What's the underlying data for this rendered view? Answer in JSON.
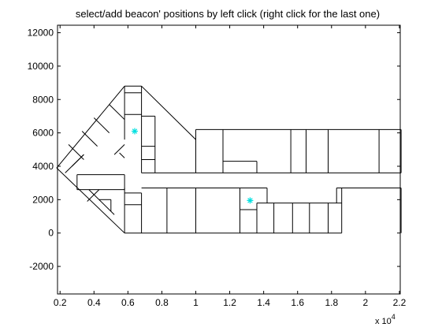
{
  "chart_data": {
    "type": "line",
    "title": "select/add beacon' positions by left click (right click for the last one)",
    "xlabel": "",
    "ylabel": "",
    "xlim": [
      1850,
      22050
    ],
    "ylim": [
      -3650,
      12450
    ],
    "x_ticks": [
      2000,
      4000,
      6000,
      8000,
      10000,
      12000,
      14000,
      16000,
      18000,
      20000,
      22000
    ],
    "x_tick_labels": [
      "0.2",
      "0.4",
      "0.6",
      "0.8",
      "1",
      "1.2",
      "1.4",
      "1.6",
      "1.8",
      "2",
      "2.2"
    ],
    "x_exponent_base": "x 10",
    "x_exponent_power": "4",
    "y_ticks": [
      -2000,
      0,
      2000,
      4000,
      6000,
      8000,
      10000,
      12000
    ],
    "y_tick_labels": [
      "-2000",
      "0",
      "2000",
      "4000",
      "6000",
      "8000",
      "10000",
      "12000"
    ],
    "grid": false,
    "line_color": "#000000",
    "marker_color": "#00e0e0",
    "segments": [
      [
        [
          10000,
          3600
        ],
        [
          22100,
          3600
        ]
      ],
      [
        [
          10000,
          6200
        ],
        [
          22100,
          6200
        ]
      ],
      [
        [
          10000,
          3600
        ],
        [
          10000,
          6200
        ]
      ],
      [
        [
          22100,
          3600
        ],
        [
          22100,
          6200
        ]
      ],
      [
        [
          11600,
          3600
        ],
        [
          11600,
          6200
        ]
      ],
      [
        [
          15600,
          3600
        ],
        [
          15600,
          6200
        ]
      ],
      [
        [
          16500,
          3600
        ],
        [
          16500,
          6200
        ]
      ],
      [
        [
          17800,
          3600
        ],
        [
          17800,
          6200
        ]
      ],
      [
        [
          20800,
          3600
        ],
        [
          20800,
          6200
        ]
      ],
      [
        [
          11600,
          4300
        ],
        [
          13600,
          4300
        ]
      ],
      [
        [
          13600,
          3600
        ],
        [
          13600,
          4300
        ]
      ],
      [
        [
          6800,
          0
        ],
        [
          18600,
          0
        ]
      ],
      [
        [
          6800,
          2700
        ],
        [
          14200,
          2700
        ]
      ],
      [
        [
          18300,
          2700
        ],
        [
          22100,
          2700
        ]
      ],
      [
        [
          22100,
          0
        ],
        [
          22100,
          2700
        ]
      ],
      [
        [
          10000,
          0
        ],
        [
          10000,
          2700
        ]
      ],
      [
        [
          12600,
          0
        ],
        [
          12600,
          2700
        ]
      ],
      [
        [
          14200,
          1800
        ],
        [
          14200,
          2700
        ]
      ],
      [
        [
          12600,
          1400
        ],
        [
          13600,
          1400
        ]
      ],
      [
        [
          13600,
          0
        ],
        [
          13600,
          1800
        ]
      ],
      [
        [
          13600,
          1800
        ],
        [
          18600,
          1800
        ]
      ],
      [
        [
          14600,
          0
        ],
        [
          14600,
          1800
        ]
      ],
      [
        [
          15700,
          0
        ],
        [
          15700,
          1800
        ]
      ],
      [
        [
          16700,
          0
        ],
        [
          16700,
          1800
        ]
      ],
      [
        [
          17800,
          0
        ],
        [
          17800,
          1800
        ]
      ],
      [
        [
          18300,
          1800
        ],
        [
          18300,
          2700
        ]
      ],
      [
        [
          18600,
          0
        ],
        [
          18600,
          2700
        ]
      ],
      [
        [
          8300,
          0
        ],
        [
          8300,
          2700
        ]
      ],
      [
        [
          5800,
          0
        ],
        [
          6800,
          0
        ]
      ],
      [
        [
          5800,
          1700
        ],
        [
          6800,
          1700
        ]
      ],
      [
        [
          5800,
          2400
        ],
        [
          6800,
          2400
        ]
      ],
      [
        [
          6800,
          0
        ],
        [
          6800,
          2400
        ]
      ],
      [
        [
          5800,
          0
        ],
        [
          5800,
          2700
        ]
      ],
      [
        [
          3000,
          2600
        ],
        [
          5800,
          2600
        ]
      ],
      [
        [
          3000,
          3500
        ],
        [
          5800,
          3500
        ]
      ],
      [
        [
          3000,
          2600
        ],
        [
          3000,
          3500
        ]
      ],
      [
        [
          5800,
          2600
        ],
        [
          5800,
          3500
        ]
      ],
      [
        [
          1800,
          3900
        ],
        [
          5800,
          0
        ]
      ],
      [
        [
          1800,
          3900
        ],
        [
          5800,
          8800
        ]
      ],
      [
        [
          5800,
          8800
        ],
        [
          6800,
          8800
        ]
      ],
      [
        [
          6800,
          8800
        ],
        [
          10000,
          5600
        ]
      ],
      [
        [
          10000,
          3600
        ],
        [
          10000,
          5600
        ]
      ],
      [
        [
          6800,
          3600
        ],
        [
          10000,
          3600
        ]
      ],
      [
        [
          6800,
          3600
        ],
        [
          6800,
          8800
        ]
      ],
      [
        [
          5800,
          5600
        ],
        [
          5800,
          8800
        ]
      ],
      [
        [
          5800,
          8400
        ],
        [
          6800,
          8400
        ]
      ],
      [
        [
          5800,
          7100
        ],
        [
          6800,
          7100
        ]
      ],
      [
        [
          6800,
          7000
        ],
        [
          7600,
          7000
        ]
      ],
      [
        [
          7600,
          3600
        ],
        [
          7600,
          7000
        ]
      ],
      [
        [
          6800,
          5200
        ],
        [
          7600,
          5200
        ]
      ],
      [
        [
          6800,
          4400
        ],
        [
          7600,
          4400
        ]
      ],
      [
        [
          2300,
          3600
        ],
        [
          3400,
          4700
        ]
      ],
      [
        [
          2700,
          4000
        ],
        [
          3400,
          4700
        ]
      ],
      [
        [
          2500,
          5300
        ],
        [
          3400,
          4400
        ]
      ],
      [
        [
          3300,
          6100
        ],
        [
          4200,
          5200
        ]
      ],
      [
        [
          4000,
          6900
        ],
        [
          4900,
          6000
        ]
      ],
      [
        [
          4900,
          7700
        ],
        [
          5800,
          6800
        ]
      ],
      [
        [
          5200,
          4700
        ],
        [
          5800,
          5300
        ]
      ],
      [
        [
          5500,
          4800
        ],
        [
          5800,
          4500
        ]
      ],
      [
        [
          3700,
          2600
        ],
        [
          5200,
          1100
        ]
      ],
      [
        [
          3600,
          1900
        ],
        [
          4300,
          2600
        ]
      ],
      [
        [
          4300,
          2000
        ],
        [
          5000,
          2000
        ]
      ],
      [
        [
          5000,
          1300
        ],
        [
          5000,
          2000
        ]
      ]
    ],
    "beacons": [
      [
        6400,
        6100
      ],
      [
        13200,
        1950
      ]
    ]
  }
}
